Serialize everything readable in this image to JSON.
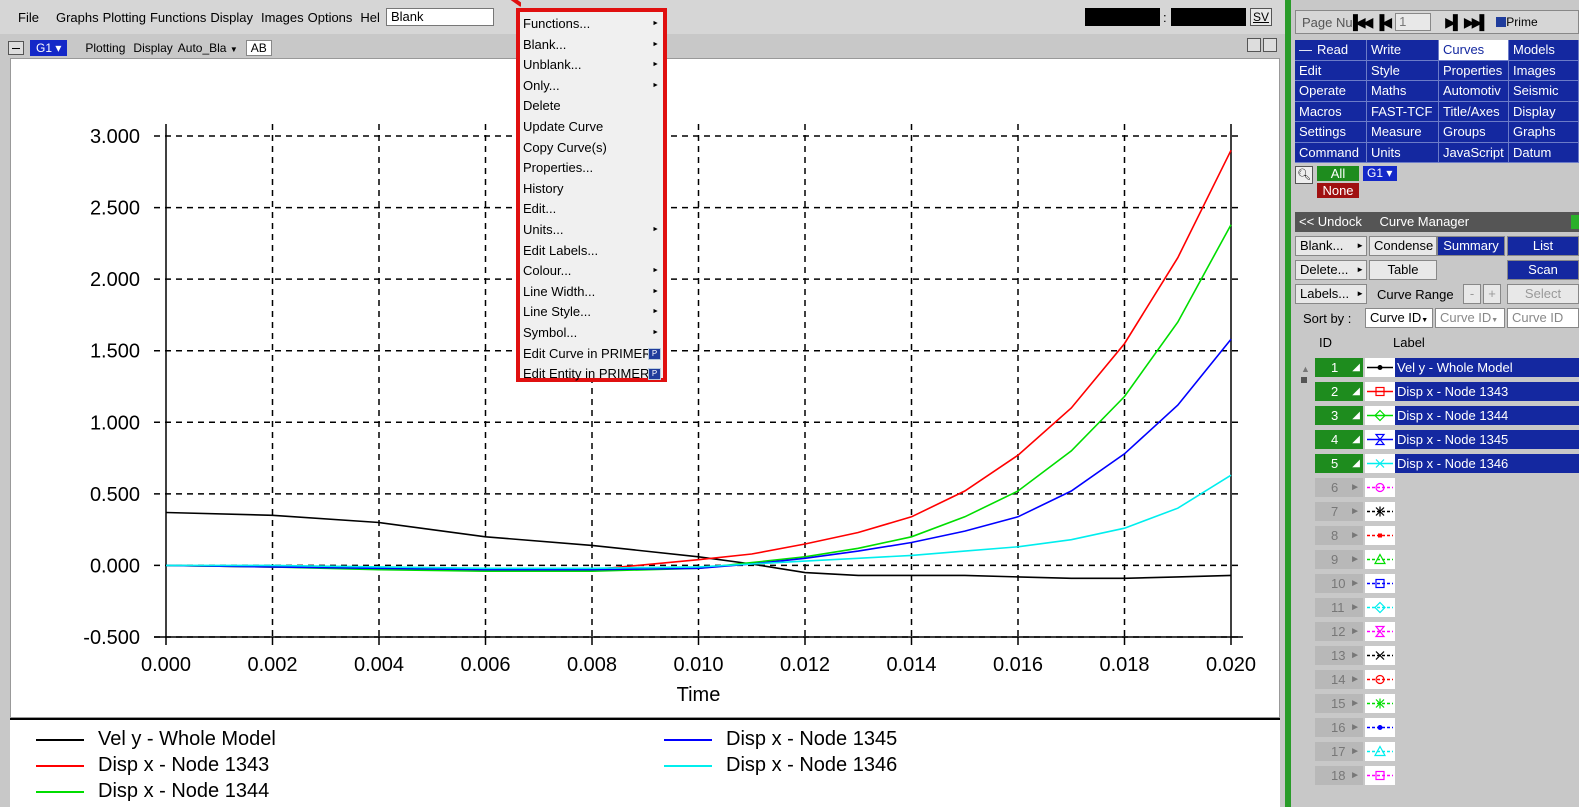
{
  "menubar": {
    "items": [
      "File",
      "Graphs",
      "Plotting",
      "Functions",
      "Display",
      "Images",
      "Options",
      "Hel"
    ],
    "blank_value": "Blank",
    "sv_label": "SV",
    "colon": ":"
  },
  "graph_toolbar": {
    "graph_chip": "G1",
    "items": [
      "Plotting",
      "Display",
      "Auto_Bla"
    ],
    "ab_label": "AB"
  },
  "chart_data": {
    "type": "line",
    "xlabel": "Time",
    "xlim": [
      0.0,
      0.02
    ],
    "ylim": [
      -0.5,
      3.0
    ],
    "x_ticks": [
      "0.000",
      "0.002",
      "0.004",
      "0.006",
      "0.008",
      "0.010",
      "0.012",
      "0.014",
      "0.016",
      "0.018",
      "0.020"
    ],
    "y_ticks": [
      "-0.500",
      "0.000",
      "0.500",
      "1.000",
      "1.500",
      "2.000",
      "2.500",
      "3.000"
    ],
    "grid": true,
    "legend_position": "bottom",
    "x": [
      0.0,
      0.002,
      0.004,
      0.006,
      0.008,
      0.01,
      0.011,
      0.012,
      0.013,
      0.014,
      0.015,
      0.016,
      0.017,
      0.018,
      0.019,
      0.02
    ],
    "series": [
      {
        "name": "Vel y - Whole Model",
        "color": "#000000",
        "values": [
          0.37,
          0.35,
          0.3,
          0.2,
          0.14,
          0.06,
          0.01,
          -0.05,
          -0.07,
          -0.07,
          -0.07,
          -0.08,
          -0.09,
          -0.09,
          -0.08,
          -0.07
        ]
      },
      {
        "name": "Disp x - Node 1343",
        "color": "#ff0000",
        "values": [
          0.0,
          -0.01,
          -0.02,
          -0.03,
          -0.03,
          0.04,
          0.08,
          0.15,
          0.23,
          0.34,
          0.52,
          0.77,
          1.1,
          1.55,
          2.15,
          2.9
        ]
      },
      {
        "name": "Disp x - Node 1344",
        "color": "#00dd00",
        "values": [
          0.0,
          -0.01,
          -0.03,
          -0.04,
          -0.04,
          -0.02,
          0.02,
          0.06,
          0.12,
          0.2,
          0.34,
          0.52,
          0.8,
          1.18,
          1.7,
          2.38
        ]
      },
      {
        "name": "Disp x - Node 1345",
        "color": "#0000ff",
        "values": [
          0.0,
          -0.01,
          -0.02,
          -0.03,
          -0.03,
          -0.02,
          0.01,
          0.05,
          0.1,
          0.16,
          0.24,
          0.34,
          0.52,
          0.78,
          1.12,
          1.58
        ]
      },
      {
        "name": "Disp x - Node 1346",
        "color": "#00eeee",
        "values": [
          0.0,
          0.0,
          -0.01,
          -0.02,
          -0.02,
          -0.01,
          0.01,
          0.03,
          0.05,
          0.07,
          0.1,
          0.13,
          0.18,
          0.26,
          0.4,
          0.63
        ]
      }
    ]
  },
  "context_menu": {
    "items": [
      {
        "label": "Functions...",
        "submenu": true
      },
      {
        "label": "Blank...",
        "submenu": true
      },
      {
        "label": "Unblank...",
        "submenu": true
      },
      {
        "label": "Only...",
        "submenu": true
      },
      {
        "label": "Delete",
        "submenu": false
      },
      {
        "label": "Update Curve",
        "submenu": false
      },
      {
        "label": "Copy Curve(s)",
        "submenu": false
      },
      {
        "label": "Properties...",
        "submenu": false
      },
      {
        "label": "History",
        "submenu": false
      },
      {
        "label": "Edit...",
        "submenu": false
      },
      {
        "label": "Units...",
        "submenu": true
      },
      {
        "label": "Edit Labels...",
        "submenu": false
      },
      {
        "label": "Colour...",
        "submenu": true
      },
      {
        "label": "Line Width...",
        "submenu": true
      },
      {
        "label": "Line Style...",
        "submenu": true
      },
      {
        "label": "Symbol...",
        "submenu": true
      },
      {
        "label": "Edit Curve in PRIMER",
        "submenu": false,
        "primer_icon": true
      },
      {
        "label": "Edit Entity in PRIMER",
        "submenu": false,
        "primer_icon": true
      }
    ]
  },
  "right_panel": {
    "page_label": "Page Nu",
    "page_value": "1",
    "primer_label": "Prime",
    "nav": [
      [
        "Read",
        "Write",
        "Curves",
        "Models"
      ],
      [
        "Edit",
        "Style",
        "Properties",
        "Images"
      ],
      [
        "Operate",
        "Maths",
        "Automotiv",
        "Seismic"
      ],
      [
        "Macros",
        "FAST-TCF",
        "Title/Axes",
        "Display"
      ],
      [
        "Settings",
        "Measure",
        "Groups",
        "Graphs"
      ],
      [
        "Command",
        "Units",
        "JavaScript",
        "Datum"
      ]
    ],
    "nav_selected": "Curves",
    "all_label": "All",
    "none_label": "None",
    "graph_label": "G1",
    "curve_manager": {
      "undock_label": "<< Undock",
      "title": "Curve Manager",
      "blank_btn": "Blank...",
      "condense_btn": "Condense",
      "summary_btn": "Summary",
      "list_btn": "List",
      "delete_btn": "Delete...",
      "table_btn": "Table",
      "scan_btn": "Scan",
      "labels_btn": "Labels...",
      "curve_range_label": "Curve Range",
      "minus_btn": "-",
      "plus_btn": "+",
      "select_btn": "Select",
      "sort_label": "Sort by :",
      "sort_options": [
        "Curve ID",
        "Curve ID",
        "Curve ID"
      ],
      "col_id": "ID",
      "col_label": "Label",
      "curves": [
        {
          "id": "1",
          "active": true,
          "label": "Vel y - Whole Model",
          "color": "#000000",
          "symbol": "dot"
        },
        {
          "id": "2",
          "active": true,
          "label": "Disp x - Node 1343",
          "color": "#ff0000",
          "symbol": "square"
        },
        {
          "id": "3",
          "active": true,
          "label": "Disp x - Node 1344",
          "color": "#00dd00",
          "symbol": "diamond"
        },
        {
          "id": "4",
          "active": true,
          "label": "Disp x - Node 1345",
          "color": "#0000ff",
          "symbol": "hourglass"
        },
        {
          "id": "5",
          "active": true,
          "label": "Disp x - Node 1346",
          "color": "#00eeee",
          "symbol": "x"
        },
        {
          "id": "6",
          "active": false,
          "label": "",
          "color": "#ff00ff",
          "symbol": "circle"
        },
        {
          "id": "7",
          "active": false,
          "label": "",
          "color": "#000000",
          "symbol": "star"
        },
        {
          "id": "8",
          "active": false,
          "label": "",
          "color": "#ff0000",
          "symbol": "dot-dash"
        },
        {
          "id": "9",
          "active": false,
          "label": "",
          "color": "#00dd00",
          "symbol": "triangle"
        },
        {
          "id": "10",
          "active": false,
          "label": "",
          "color": "#0000ff",
          "symbol": "square"
        },
        {
          "id": "11",
          "active": false,
          "label": "",
          "color": "#00eeee",
          "symbol": "diamond"
        },
        {
          "id": "12",
          "active": false,
          "label": "",
          "color": "#ff00ff",
          "symbol": "hourglass"
        },
        {
          "id": "13",
          "active": false,
          "label": "",
          "color": "#000000",
          "symbol": "x"
        },
        {
          "id": "14",
          "active": false,
          "label": "",
          "color": "#ff0000",
          "symbol": "circle"
        },
        {
          "id": "15",
          "active": false,
          "label": "",
          "color": "#00dd00",
          "symbol": "star"
        },
        {
          "id": "16",
          "active": false,
          "label": "",
          "color": "#0000ff",
          "symbol": "dot"
        },
        {
          "id": "17",
          "active": false,
          "label": "",
          "color": "#00eeee",
          "symbol": "triangle"
        },
        {
          "id": "18",
          "active": false,
          "label": "",
          "color": "#ff00ff",
          "symbol": "square"
        }
      ]
    }
  }
}
